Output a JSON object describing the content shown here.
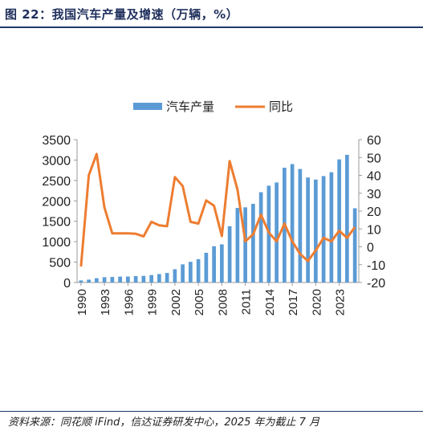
{
  "figure_title": "图 22：我国汽车产量及增速（万辆，%）",
  "source": "资料来源：同花顺 iFind，信达证券研发中心，2025 年为截止 7 月",
  "colors": {
    "bar": "#5b9bd5",
    "line": "#ed7d31",
    "title": "#1f2f5c",
    "rule": "#1f3a6b"
  },
  "chart_data": {
    "type": "bar",
    "legend_position": "top-center",
    "grid": false,
    "legend": [
      "汽车产量",
      "同比"
    ],
    "x": [
      1990,
      1991,
      1992,
      1993,
      1994,
      1995,
      1996,
      1997,
      1998,
      1999,
      2000,
      2001,
      2002,
      2003,
      2004,
      2005,
      2006,
      2007,
      2008,
      2009,
      2010,
      2011,
      2012,
      2013,
      2014,
      2015,
      2016,
      2017,
      2018,
      2019,
      2020,
      2021,
      2022,
      2023,
      2024,
      2025
    ],
    "x_tick_labels": [
      "1990",
      "1993",
      "1996",
      "1999",
      "2002",
      "2005",
      "2008",
      "2011",
      "2014",
      "2017",
      "2020",
      "2023"
    ],
    "series": [
      {
        "name": "汽车产量",
        "type": "bar",
        "axis": "left",
        "values": [
          51,
          71,
          106,
          130,
          137,
          145,
          147,
          158,
          163,
          183,
          207,
          234,
          325,
          444,
          507,
          571,
          728,
          889,
          935,
          1379,
          1827,
          1842,
          1928,
          2212,
          2372,
          2450,
          2812,
          2902,
          2781,
          2572,
          2523,
          2608,
          2702,
          3016,
          3128,
          1819
        ]
      },
      {
        "name": "同比",
        "type": "line",
        "axis": "right",
        "values": [
          -11,
          40,
          52,
          22,
          7.5,
          7.5,
          7.5,
          7.3,
          5.8,
          14,
          12,
          11.5,
          39,
          34,
          14,
          13,
          26,
          23,
          6,
          48,
          32,
          3,
          7,
          18,
          8,
          3,
          13,
          3,
          -4,
          -8,
          -2,
          5,
          3,
          9,
          5,
          11
        ]
      }
    ],
    "y_left": {
      "lim": [
        0,
        3500
      ],
      "ticks": [
        0,
        500,
        1000,
        1500,
        2000,
        2500,
        3000,
        3500
      ]
    },
    "y_right": {
      "lim": [
        -20,
        60
      ],
      "ticks": [
        -20,
        -10,
        0,
        10,
        20,
        30,
        40,
        50,
        60
      ]
    }
  }
}
